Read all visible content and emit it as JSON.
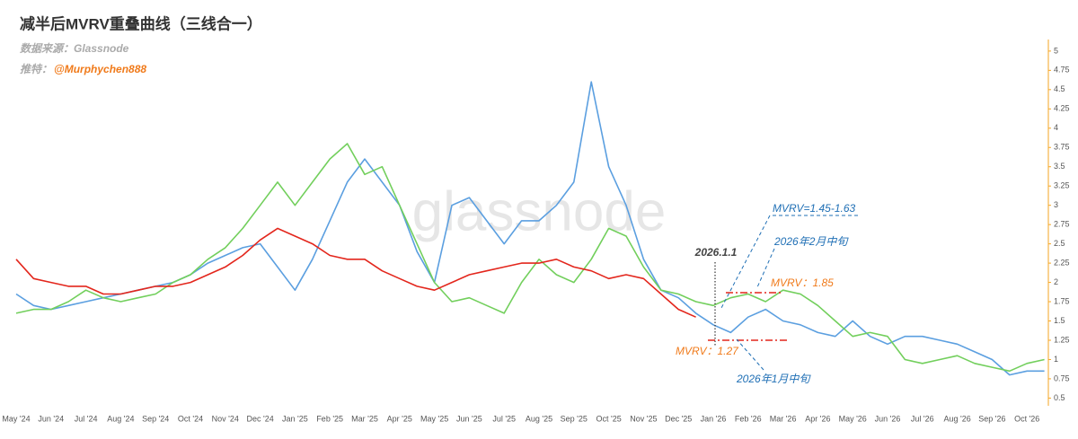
{
  "chart_data": {
    "type": "line",
    "title": "减半后MVRV重叠曲线（三线合一）",
    "source": "数据来源：Glassnode",
    "author_label": "推特：",
    "author": "@Murphychen888",
    "watermark": "glassnode",
    "categories": [
      "May '24",
      null,
      "Jun '24",
      null,
      "Jul '24",
      null,
      "Aug '24",
      null,
      "Sep '24",
      null,
      "Oct '24",
      null,
      "Nov '24",
      null,
      "Dec '24",
      null,
      "Jan '25",
      null,
      "Feb '25",
      null,
      "Mar '25",
      null,
      "Apr '25",
      null,
      "May '25",
      null,
      "Jun '25",
      null,
      "Jul '25",
      null,
      "Aug '25",
      null,
      "Sep '25",
      null,
      "Oct '25",
      null,
      "Nov '25",
      null,
      "Dec '25",
      null,
      "Jan '26",
      null,
      "Feb '26",
      null,
      "Mar '26",
      null,
      "Apr '26",
      null,
      "May '26",
      null,
      "Jun '26",
      null,
      "Jul '26",
      null,
      "Aug '26",
      null,
      "Sep '26",
      null,
      "Oct '26",
      null
    ],
    "series": [
      {
        "color": "#5b9fe0",
        "values": [
          1.85,
          1.7,
          1.65,
          1.7,
          1.75,
          1.8,
          1.85,
          1.9,
          1.95,
          2.0,
          2.1,
          2.25,
          2.35,
          2.45,
          2.5,
          2.2,
          1.9,
          2.3,
          2.8,
          3.3,
          3.6,
          3.3,
          3.0,
          2.4,
          2.0,
          3.0,
          3.1,
          2.8,
          2.5,
          2.8,
          2.8,
          3.0,
          3.3,
          4.6,
          3.5,
          3.0,
          2.3,
          1.9,
          1.8,
          1.6,
          1.45,
          1.35,
          1.55,
          1.65,
          1.5,
          1.45,
          1.35,
          1.3,
          1.5,
          1.3,
          1.2,
          1.3,
          1.3,
          1.25,
          1.2,
          1.1,
          1.0,
          0.8,
          0.85,
          0.85
        ]
      },
      {
        "color": "#72cf5c",
        "values": [
          1.6,
          1.65,
          1.65,
          1.75,
          1.9,
          1.8,
          1.75,
          1.8,
          1.85,
          2.0,
          2.1,
          2.3,
          2.45,
          2.7,
          3.0,
          3.3,
          3.0,
          3.3,
          3.6,
          3.8,
          3.4,
          3.5,
          3.0,
          2.5,
          2.0,
          1.75,
          1.8,
          1.7,
          1.6,
          2.0,
          2.3,
          2.1,
          2.0,
          2.3,
          2.7,
          2.6,
          2.2,
          1.9,
          1.85,
          1.75,
          1.7,
          1.8,
          1.85,
          1.75,
          1.9,
          1.85,
          1.7,
          1.5,
          1.3,
          1.35,
          1.3,
          1.0,
          0.95,
          1.0,
          1.05,
          0.95,
          0.9,
          0.85,
          0.95,
          1.0
        ]
      },
      {
        "color": "#e3261c",
        "values": [
          2.3,
          2.05,
          2.0,
          1.95,
          1.95,
          1.85,
          1.85,
          1.9,
          1.95,
          1.95,
          2.0,
          2.1,
          2.2,
          2.35,
          2.55,
          2.7,
          2.6,
          2.5,
          2.35,
          2.3,
          2.3,
          2.15,
          2.05,
          1.95,
          1.9,
          2.0,
          2.1,
          2.15,
          2.2,
          2.25,
          2.25,
          2.3,
          2.2,
          2.15,
          2.05,
          2.1,
          2.05,
          1.85,
          1.65,
          1.55,
          null,
          null,
          null,
          null,
          null,
          null,
          null,
          null,
          null,
          null,
          null,
          null,
          null,
          null,
          null,
          null,
          null,
          null,
          null,
          null
        ]
      }
    ],
    "ylim": [
      0.4,
      5.15
    ],
    "yticks": [
      0.5,
      0.75,
      1,
      1.25,
      1.5,
      1.75,
      2,
      2.25,
      2.5,
      2.75,
      3,
      3.25,
      3.5,
      3.75,
      4,
      4.25,
      4.5,
      4.75,
      5
    ],
    "axis_color": "#f5a623",
    "annotations": [
      "2026.1.1",
      "MVRV=1.45-1.63",
      "2026年2月中旬",
      "MVRV：1.85",
      "MVRV：1.27",
      "2026年1月中旬"
    ]
  }
}
